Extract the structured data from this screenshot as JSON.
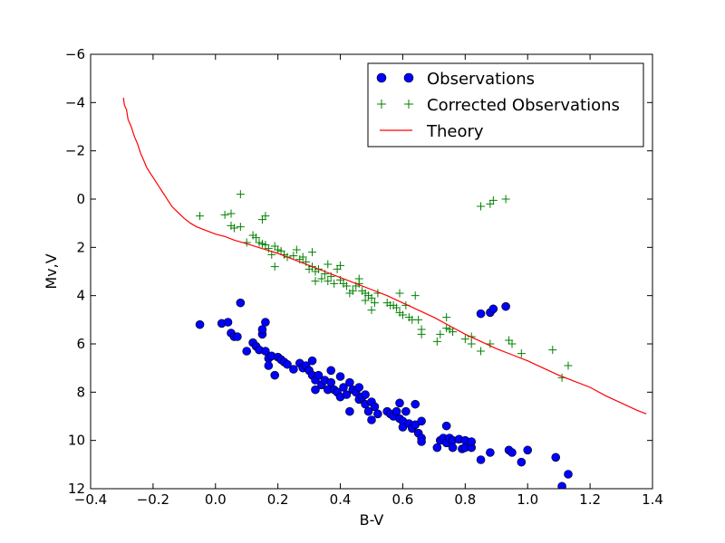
{
  "chart_data": {
    "type": "scatter",
    "title": "",
    "xlabel": "B-V",
    "ylabel": "Mv,V",
    "xlim": [
      -0.4,
      1.4
    ],
    "ylim": [
      12,
      -6
    ],
    "y_inverted": true,
    "grid": false,
    "legend_position": "top-right",
    "x_ticks": [
      -0.4,
      -0.2,
      0.0,
      0.2,
      0.4,
      0.6,
      0.8,
      1.0,
      1.2,
      1.4
    ],
    "x_tick_labels": [
      "−0.4",
      "−0.2",
      "0.0",
      "0.2",
      "0.4",
      "0.6",
      "0.8",
      "1.0",
      "1.2",
      "1.4"
    ],
    "y_ticks": [
      -6,
      -4,
      -2,
      0,
      2,
      4,
      6,
      8,
      10,
      12
    ],
    "y_tick_labels": [
      "−6",
      "−4",
      "−2",
      "0",
      "2",
      "4",
      "6",
      "8",
      "10",
      "12"
    ],
    "series": [
      {
        "name": "Observations",
        "kind": "circle-marker",
        "color": "#0000ff",
        "points": [
          [
            -0.05,
            5.2
          ],
          [
            0.02,
            5.15
          ],
          [
            0.04,
            5.1
          ],
          [
            0.05,
            5.55
          ],
          [
            0.06,
            5.7
          ],
          [
            0.07,
            5.7
          ],
          [
            0.08,
            4.3
          ],
          [
            0.1,
            6.3
          ],
          [
            0.12,
            5.95
          ],
          [
            0.13,
            6.1
          ],
          [
            0.14,
            6.25
          ],
          [
            0.15,
            5.6
          ],
          [
            0.15,
            5.4
          ],
          [
            0.16,
            5.1
          ],
          [
            0.16,
            6.3
          ],
          [
            0.17,
            6.6
          ],
          [
            0.17,
            6.9
          ],
          [
            0.18,
            6.5
          ],
          [
            0.19,
            7.3
          ],
          [
            0.2,
            6.55
          ],
          [
            0.21,
            6.65
          ],
          [
            0.22,
            6.75
          ],
          [
            0.23,
            6.85
          ],
          [
            0.25,
            7.05
          ],
          [
            0.27,
            6.8
          ],
          [
            0.28,
            7.0
          ],
          [
            0.29,
            6.9
          ],
          [
            0.3,
            7.1
          ],
          [
            0.31,
            6.7
          ],
          [
            0.31,
            7.3
          ],
          [
            0.32,
            7.5
          ],
          [
            0.32,
            7.9
          ],
          [
            0.33,
            7.3
          ],
          [
            0.34,
            7.7
          ],
          [
            0.35,
            7.5
          ],
          [
            0.36,
            7.9
          ],
          [
            0.37,
            7.1
          ],
          [
            0.37,
            7.6
          ],
          [
            0.38,
            7.9
          ],
          [
            0.39,
            8.0
          ],
          [
            0.4,
            7.35
          ],
          [
            0.4,
            8.2
          ],
          [
            0.41,
            7.8
          ],
          [
            0.42,
            8.1
          ],
          [
            0.43,
            7.6
          ],
          [
            0.43,
            8.8
          ],
          [
            0.44,
            7.9
          ],
          [
            0.45,
            8.0
          ],
          [
            0.46,
            8.3
          ],
          [
            0.46,
            7.8
          ],
          [
            0.47,
            8.2
          ],
          [
            0.48,
            8.5
          ],
          [
            0.48,
            8.1
          ],
          [
            0.49,
            8.8
          ],
          [
            0.5,
            8.4
          ],
          [
            0.5,
            9.15
          ],
          [
            0.51,
            8.6
          ],
          [
            0.52,
            8.9
          ],
          [
            0.55,
            8.8
          ],
          [
            0.56,
            8.9
          ],
          [
            0.57,
            9.0
          ],
          [
            0.58,
            8.8
          ],
          [
            0.59,
            8.45
          ],
          [
            0.59,
            9.1
          ],
          [
            0.6,
            9.2
          ],
          [
            0.6,
            9.45
          ],
          [
            0.61,
            8.8
          ],
          [
            0.62,
            9.3
          ],
          [
            0.63,
            9.5
          ],
          [
            0.64,
            8.5
          ],
          [
            0.64,
            9.35
          ],
          [
            0.65,
            9.7
          ],
          [
            0.66,
            9.2
          ],
          [
            0.66,
            9.9
          ],
          [
            0.66,
            10.05
          ],
          [
            0.71,
            10.3
          ],
          [
            0.72,
            10.0
          ],
          [
            0.73,
            9.9
          ],
          [
            0.74,
            9.4
          ],
          [
            0.74,
            10.1
          ],
          [
            0.75,
            9.9
          ],
          [
            0.76,
            10.0
          ],
          [
            0.76,
            10.3
          ],
          [
            0.78,
            9.95
          ],
          [
            0.79,
            10.35
          ],
          [
            0.8,
            10.0
          ],
          [
            0.8,
            10.3
          ],
          [
            0.82,
            10.3
          ],
          [
            0.82,
            10.05
          ],
          [
            0.85,
            10.8
          ],
          [
            0.85,
            4.75
          ],
          [
            0.88,
            10.5
          ],
          [
            0.88,
            4.7
          ],
          [
            0.89,
            4.55
          ],
          [
            0.93,
            4.45
          ],
          [
            0.94,
            10.4
          ],
          [
            0.95,
            10.5
          ],
          [
            0.98,
            10.9
          ],
          [
            1.0,
            10.4
          ],
          [
            1.09,
            10.7
          ],
          [
            1.11,
            11.9
          ],
          [
            1.13,
            11.4
          ]
        ]
      },
      {
        "name": "Corrected Observations",
        "kind": "plus-marker",
        "color": "#008000",
        "points": [
          [
            -0.05,
            0.7
          ],
          [
            0.03,
            0.65
          ],
          [
            0.05,
            0.6
          ],
          [
            0.05,
            1.1
          ],
          [
            0.06,
            1.2
          ],
          [
            0.08,
            -0.2
          ],
          [
            0.08,
            1.15
          ],
          [
            0.1,
            1.8
          ],
          [
            0.12,
            1.5
          ],
          [
            0.13,
            1.6
          ],
          [
            0.14,
            1.8
          ],
          [
            0.15,
            0.85
          ],
          [
            0.15,
            1.85
          ],
          [
            0.16,
            0.7
          ],
          [
            0.16,
            1.9
          ],
          [
            0.17,
            2.05
          ],
          [
            0.18,
            2.3
          ],
          [
            0.19,
            1.95
          ],
          [
            0.19,
            2.8
          ],
          [
            0.2,
            2.1
          ],
          [
            0.21,
            2.15
          ],
          [
            0.22,
            2.3
          ],
          [
            0.23,
            2.4
          ],
          [
            0.25,
            2.35
          ],
          [
            0.26,
            2.1
          ],
          [
            0.27,
            2.5
          ],
          [
            0.28,
            2.4
          ],
          [
            0.29,
            2.6
          ],
          [
            0.3,
            2.9
          ],
          [
            0.31,
            2.2
          ],
          [
            0.31,
            2.8
          ],
          [
            0.32,
            3.0
          ],
          [
            0.32,
            3.4
          ],
          [
            0.33,
            2.9
          ],
          [
            0.34,
            3.3
          ],
          [
            0.35,
            3.1
          ],
          [
            0.36,
            3.4
          ],
          [
            0.36,
            2.7
          ],
          [
            0.37,
            3.2
          ],
          [
            0.38,
            3.5
          ],
          [
            0.39,
            2.9
          ],
          [
            0.4,
            2.75
          ],
          [
            0.4,
            3.35
          ],
          [
            0.41,
            3.5
          ],
          [
            0.42,
            3.6
          ],
          [
            0.43,
            3.9
          ],
          [
            0.44,
            3.8
          ],
          [
            0.45,
            3.6
          ],
          [
            0.46,
            3.5
          ],
          [
            0.46,
            3.3
          ],
          [
            0.47,
            3.8
          ],
          [
            0.48,
            3.9
          ],
          [
            0.48,
            4.2
          ],
          [
            0.49,
            4.0
          ],
          [
            0.5,
            4.6
          ],
          [
            0.5,
            4.1
          ],
          [
            0.51,
            4.3
          ],
          [
            0.52,
            3.9
          ],
          [
            0.55,
            4.3
          ],
          [
            0.56,
            4.4
          ],
          [
            0.57,
            4.4
          ],
          [
            0.58,
            4.5
          ],
          [
            0.59,
            3.9
          ],
          [
            0.59,
            4.7
          ],
          [
            0.6,
            4.8
          ],
          [
            0.61,
            4.4
          ],
          [
            0.62,
            4.9
          ],
          [
            0.63,
            5.0
          ],
          [
            0.64,
            4.0
          ],
          [
            0.65,
            5.0
          ],
          [
            0.66,
            5.4
          ],
          [
            0.66,
            5.6
          ],
          [
            0.71,
            5.9
          ],
          [
            0.72,
            5.6
          ],
          [
            0.74,
            4.9
          ],
          [
            0.74,
            5.35
          ],
          [
            0.75,
            5.4
          ],
          [
            0.76,
            5.5
          ],
          [
            0.8,
            5.8
          ],
          [
            0.82,
            6.0
          ],
          [
            0.82,
            5.7
          ],
          [
            0.85,
            6.3
          ],
          [
            0.85,
            0.3
          ],
          [
            0.88,
            6.0
          ],
          [
            0.88,
            0.2
          ],
          [
            0.89,
            0.05
          ],
          [
            0.93,
            0.0
          ],
          [
            0.94,
            5.85
          ],
          [
            0.95,
            6.0
          ],
          [
            0.98,
            6.4
          ],
          [
            1.08,
            6.25
          ],
          [
            1.11,
            7.4
          ],
          [
            1.13,
            6.9
          ]
        ]
      },
      {
        "name": "Theory",
        "kind": "line",
        "color": "#ff0000",
        "points": [
          [
            -0.295,
            -4.2
          ],
          [
            -0.292,
            -3.9
          ],
          [
            -0.285,
            -3.7
          ],
          [
            -0.28,
            -3.3
          ],
          [
            -0.27,
            -3.0
          ],
          [
            -0.26,
            -2.6
          ],
          [
            -0.25,
            -2.3
          ],
          [
            -0.24,
            -1.9
          ],
          [
            -0.23,
            -1.6
          ],
          [
            -0.22,
            -1.3
          ],
          [
            -0.21,
            -1.1
          ],
          [
            -0.2,
            -0.9
          ],
          [
            -0.19,
            -0.7
          ],
          [
            -0.18,
            -0.5
          ],
          [
            -0.17,
            -0.3
          ],
          [
            -0.16,
            -0.1
          ],
          [
            -0.15,
            0.1
          ],
          [
            -0.14,
            0.3
          ],
          [
            -0.12,
            0.55
          ],
          [
            -0.1,
            0.8
          ],
          [
            -0.08,
            1.0
          ],
          [
            -0.06,
            1.15
          ],
          [
            -0.03,
            1.3
          ],
          [
            0.0,
            1.45
          ],
          [
            0.03,
            1.55
          ],
          [
            0.06,
            1.7
          ],
          [
            0.1,
            1.85
          ],
          [
            0.15,
            2.05
          ],
          [
            0.2,
            2.25
          ],
          [
            0.25,
            2.5
          ],
          [
            0.3,
            2.75
          ],
          [
            0.35,
            3.0
          ],
          [
            0.4,
            3.25
          ],
          [
            0.45,
            3.5
          ],
          [
            0.5,
            3.75
          ],
          [
            0.55,
            4.0
          ],
          [
            0.6,
            4.3
          ],
          [
            0.65,
            4.6
          ],
          [
            0.7,
            4.9
          ],
          [
            0.75,
            5.25
          ],
          [
            0.8,
            5.6
          ],
          [
            0.85,
            5.9
          ],
          [
            0.9,
            6.2
          ],
          [
            0.95,
            6.45
          ],
          [
            1.0,
            6.7
          ],
          [
            1.05,
            7.0
          ],
          [
            1.1,
            7.3
          ],
          [
            1.15,
            7.55
          ],
          [
            1.2,
            7.8
          ],
          [
            1.25,
            8.15
          ],
          [
            1.3,
            8.45
          ],
          [
            1.35,
            8.75
          ],
          [
            1.38,
            8.9
          ]
        ]
      }
    ]
  }
}
